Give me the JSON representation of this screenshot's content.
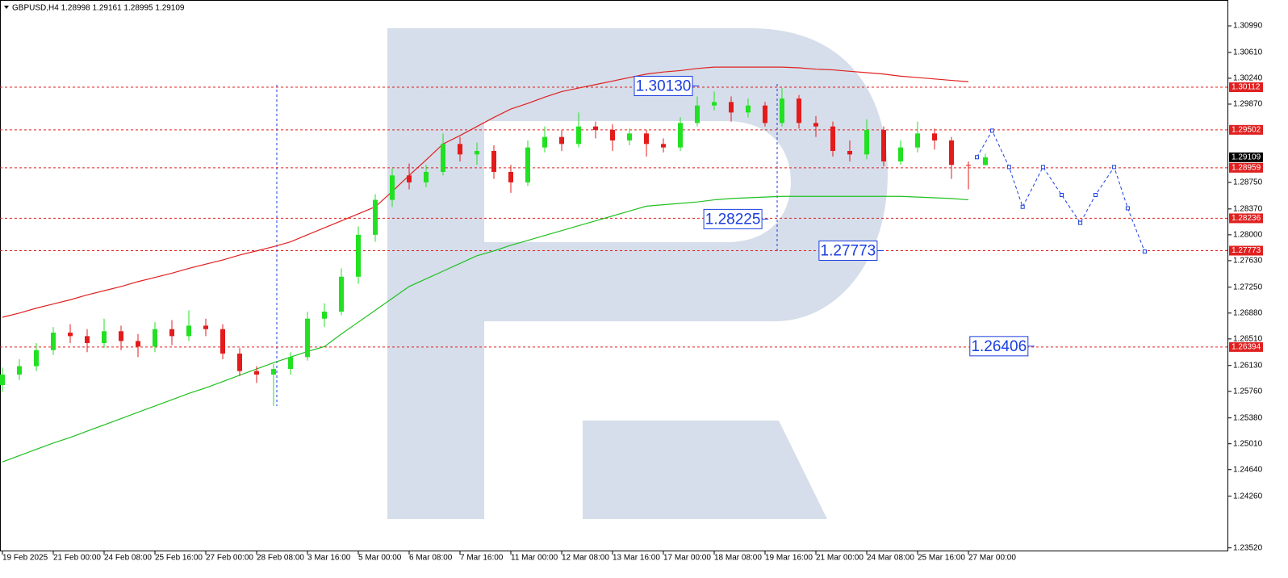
{
  "chart_data": {
    "type": "candlestick",
    "title": "GBPUSD,H4  1.28998 1.29161 1.28995 1.29109",
    "categories": [
      "19 Feb 2025",
      null,
      null,
      "21 Feb 00:00",
      null,
      null,
      "24 Feb 08:00",
      null,
      null,
      "25 Feb 16:00",
      null,
      null,
      "27 Feb 00:00",
      null,
      null,
      "28 Feb 08:00",
      null,
      null,
      "3 Mar 16:00",
      null,
      null,
      "5 Mar 00:00",
      null,
      null,
      "6 Mar 08:00",
      null,
      null,
      "7 Mar 16:00",
      null,
      null,
      "11 Mar 00:00",
      null,
      null,
      "12 Mar 08:00",
      null,
      null,
      "13 Mar 16:00",
      null,
      null,
      "17 Mar 00:00",
      null,
      null,
      "18 Mar 08:00",
      null,
      null,
      "19 Mar 16:00",
      null,
      null,
      "21 Mar 00:00",
      null,
      null,
      "24 Mar 08:00",
      null,
      null,
      "25 Mar 16:00",
      null,
      null,
      "27 Mar 00:00",
      null
    ],
    "open": [
      1.2585,
      1.26,
      1.2612,
      1.2635,
      1.266,
      1.2655,
      1.2645,
      1.2662,
      1.2648,
      1.264,
      1.2665,
      1.2655,
      1.267,
      1.2665,
      1.263,
      1.2605,
      1.26,
      1.2608,
      1.2625,
      1.268,
      1.269,
      1.274,
      1.28,
      1.285,
      1.2885,
      1.2875,
      1.289,
      1.293,
      1.2915,
      1.292,
      1.289,
      1.2875,
      1.2925,
      1.294,
      1.293,
      1.2955,
      1.295,
      1.2935,
      1.2945,
      1.293,
      1.2925,
      1.296,
      1.2985,
      1.299,
      1.2975,
      1.2985,
      1.296,
      1.2995,
      1.296,
      1.2955,
      1.292,
      1.2915,
      1.295,
      1.2905,
      1.2925,
      1.2945,
      1.2935,
      1.29,
      1.28998
    ],
    "high": [
      1.261,
      1.2622,
      1.2645,
      1.2668,
      1.2672,
      1.2665,
      1.268,
      1.267,
      1.2658,
      1.2675,
      1.2678,
      1.2692,
      1.268,
      1.2672,
      1.2638,
      1.2612,
      1.2615,
      1.2632,
      1.269,
      1.2702,
      1.2752,
      1.2812,
      1.2858,
      1.2895,
      1.2902,
      1.29,
      1.2945,
      1.294,
      1.2932,
      1.2928,
      1.29,
      1.2935,
      1.2955,
      1.295,
      1.2975,
      1.2962,
      1.2958,
      1.2952,
      1.295,
      1.2938,
      1.2968,
      1.2998,
      1.3005,
      1.2998,
      1.2995,
      1.299,
      1.301,
      1.3,
      1.297,
      1.2962,
      1.2935,
      1.2965,
      1.2955,
      1.2935,
      1.2962,
      1.2952,
      1.294,
      1.2905,
      1.29161
    ],
    "low": [
      1.2575,
      1.2592,
      1.2605,
      1.2628,
      1.2645,
      1.2632,
      1.2638,
      1.2635,
      1.2625,
      1.2632,
      1.2642,
      1.2648,
      1.2655,
      1.2622,
      1.2598,
      1.2588,
      1.2555,
      1.26,
      1.262,
      1.2668,
      1.2685,
      1.273,
      1.279,
      1.284,
      1.2865,
      1.2868,
      1.2885,
      1.2905,
      1.29,
      1.288,
      1.286,
      1.287,
      1.2918,
      1.292,
      1.2925,
      1.2938,
      1.292,
      1.2928,
      1.2912,
      1.2918,
      1.292,
      1.2955,
      1.2978,
      1.2962,
      1.2968,
      1.2955,
      1.2955,
      1.2952,
      1.294,
      1.2912,
      1.2905,
      1.2908,
      1.2898,
      1.29,
      1.2918,
      1.2922,
      1.288,
      1.2865,
      1.28995
    ],
    "close": [
      1.26,
      1.2612,
      1.2635,
      1.266,
      1.2655,
      1.2645,
      1.2662,
      1.2648,
      1.264,
      1.2665,
      1.2655,
      1.267,
      1.2665,
      1.263,
      1.2605,
      1.26,
      1.2608,
      1.2625,
      1.268,
      1.269,
      1.274,
      1.28,
      1.285,
      1.2885,
      1.2875,
      1.289,
      1.293,
      1.2915,
      1.292,
      1.289,
      1.2875,
      1.2925,
      1.294,
      1.293,
      1.2955,
      1.295,
      1.2935,
      1.2945,
      1.293,
      1.2925,
      1.296,
      1.2985,
      1.299,
      1.2975,
      1.2985,
      1.296,
      1.2995,
      1.296,
      1.2955,
      1.292,
      1.2915,
      1.295,
      1.2905,
      1.2925,
      1.2945,
      1.2935,
      1.29,
      1.28998,
      1.29109
    ],
    "up_color": "#22e022",
    "down_color": "#e31b1b",
    "series": [
      {
        "color": "#e02020",
        "values": [
          1.2682,
          1.2688,
          1.2695,
          1.2701,
          1.2707,
          1.2714,
          1.272,
          1.2726,
          1.2733,
          1.2739,
          1.2745,
          1.2752,
          1.2758,
          1.2764,
          1.2771,
          1.2777,
          1.2783,
          1.279,
          1.28,
          1.281,
          1.282,
          1.283,
          1.284,
          1.2862,
          1.2885,
          1.2907,
          1.293,
          1.2942,
          1.2955,
          1.2968,
          1.298,
          1.2988,
          1.2997,
          1.3005,
          1.301,
          1.3015,
          1.302,
          1.3025,
          1.303,
          1.3033,
          1.3035,
          1.3038,
          1.304,
          1.304,
          1.304,
          1.304,
          1.304,
          1.3039,
          1.3037,
          1.3036,
          1.3034,
          1.3032,
          1.303,
          1.3027,
          1.3025,
          1.3023,
          1.3021,
          1.3019,
          null
        ]
      },
      {
        "color": "#20c020",
        "values": [
          1.2475,
          1.2484,
          1.2493,
          1.2502,
          1.251,
          1.2519,
          1.2528,
          1.2537,
          1.2546,
          1.2555,
          1.2564,
          1.2573,
          1.2581,
          1.259,
          1.2599,
          1.2608,
          1.2617,
          1.2625,
          1.2633,
          1.264,
          1.2658,
          1.2675,
          1.2692,
          1.2709,
          1.2726,
          1.2737,
          1.2748,
          1.2759,
          1.277,
          1.2777,
          1.2785,
          1.2792,
          1.2799,
          1.2806,
          1.2813,
          1.282,
          1.2827,
          1.2834,
          1.2841,
          1.2843,
          1.2845,
          1.2847,
          1.285,
          1.2852,
          1.2853,
          1.2854,
          1.2855,
          1.2855,
          1.2855,
          1.2855,
          1.2855,
          1.2855,
          1.2855,
          1.2855,
          1.2854,
          1.2853,
          1.2852,
          1.285,
          null
        ]
      }
    ],
    "forecast": {
      "color": "#1a3ee0",
      "x": [
        57.5,
        58.4,
        59.4,
        60.2,
        61.4,
        62.5,
        63.6,
        64.5,
        65.6,
        66.4,
        67.4
      ],
      "values": [
        1.2911,
        1.2949,
        1.2897,
        1.284,
        1.2897,
        1.2857,
        1.2817,
        1.2857,
        1.2897,
        1.2838,
        1.2776
      ]
    },
    "levels": [
      {
        "value": 1.30112,
        "label": "1.30112"
      },
      {
        "value": 1.29502,
        "label": "1.29502"
      },
      {
        "value": 1.28959,
        "label": "1.28959"
      },
      {
        "value": 1.28236,
        "label": "1.28236"
      },
      {
        "value": 1.27773,
        "label": "1.27773"
      },
      {
        "value": 1.26394,
        "label": "1.26394"
      }
    ],
    "level_color": "#e02020",
    "current": {
      "value": 1.29109,
      "label": "1.29109"
    },
    "annotations": [
      {
        "x": 39,
        "value": 1.3013,
        "label": "1.30130"
      },
      {
        "x": 43.1,
        "value": 1.28225,
        "label": "1.28225"
      },
      {
        "x": 49.9,
        "value": 1.27773,
        "label": "1.27773"
      },
      {
        "x": 58.8,
        "value": 1.26406,
        "label": "1.26406"
      }
    ],
    "ylim": [
      1.2347,
      1.3136
    ],
    "yticks": [
      {
        "value": 1.3099,
        "label": "1.30990"
      },
      {
        "value": 1.3061,
        "label": "1.30610"
      },
      {
        "value": 1.3024,
        "label": "1.30240"
      },
      {
        "value": 1.2987,
        "label": "1.29870"
      },
      {
        "value": 1.2875,
        "label": "1.28750"
      },
      {
        "value": 1.2837,
        "label": "1.28370"
      },
      {
        "value": 1.28,
        "label": "1.28000"
      },
      {
        "value": 1.2763,
        "label": "1.27630"
      },
      {
        "value": 1.2725,
        "label": "1.27250"
      },
      {
        "value": 1.2688,
        "label": "1.26880"
      },
      {
        "value": 1.2651,
        "label": "1.26510"
      },
      {
        "value": 1.2613,
        "label": "1.26130"
      },
      {
        "value": 1.2576,
        "label": "1.25760"
      },
      {
        "value": 1.2538,
        "label": "1.25380"
      },
      {
        "value": 1.2501,
        "label": "1.25010"
      },
      {
        "value": 1.2464,
        "label": "1.24640"
      },
      {
        "value": 1.2426,
        "label": "1.24260"
      },
      {
        "value": 1.2352,
        "label": "1.23520"
      }
    ]
  }
}
